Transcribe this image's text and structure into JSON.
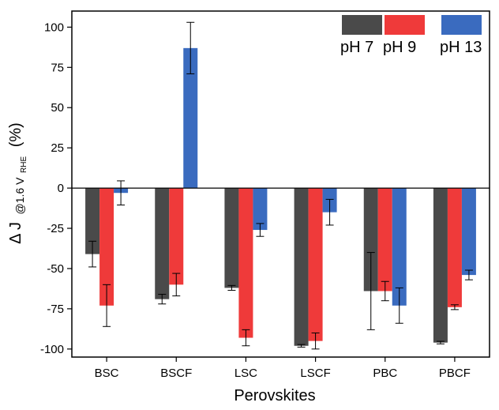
{
  "colors": {
    "pH 7": "#4a4a4a",
    "pH 9": "#ef3a3a",
    "pH 13": "#3a6bbf"
  },
  "chart_data": {
    "type": "bar",
    "xlabel": "Perovskites",
    "ylabel": {
      "main": "Δ J",
      "sub": "@1.6 V",
      "subsub": "RHE",
      "unit": "(%)"
    },
    "ylim": [
      -105,
      110
    ],
    "yticks": [
      -100,
      -75,
      -50,
      -25,
      0,
      25,
      50,
      75,
      100
    ],
    "categories": [
      "BSC",
      "BSCF",
      "LSC",
      "LSCF",
      "PBC",
      "PBCF"
    ],
    "legend_position": "top-right",
    "grid": false,
    "series": [
      {
        "name": "pH 7",
        "values": [
          -41,
          -69,
          -62,
          -98,
          -64,
          -96
        ],
        "errors": [
          8,
          3,
          1.5,
          0.8,
          24,
          0.8
        ]
      },
      {
        "name": "pH 9",
        "values": [
          -73,
          -60,
          -93,
          -95,
          -64,
          -74
        ],
        "errors": [
          13,
          7,
          5,
          5,
          6,
          1.5
        ]
      },
      {
        "name": "pH 13",
        "values": [
          -3,
          87,
          -26,
          -15,
          -73,
          -54
        ],
        "errors": [
          7.5,
          16,
          4,
          8,
          11,
          3
        ]
      }
    ]
  }
}
